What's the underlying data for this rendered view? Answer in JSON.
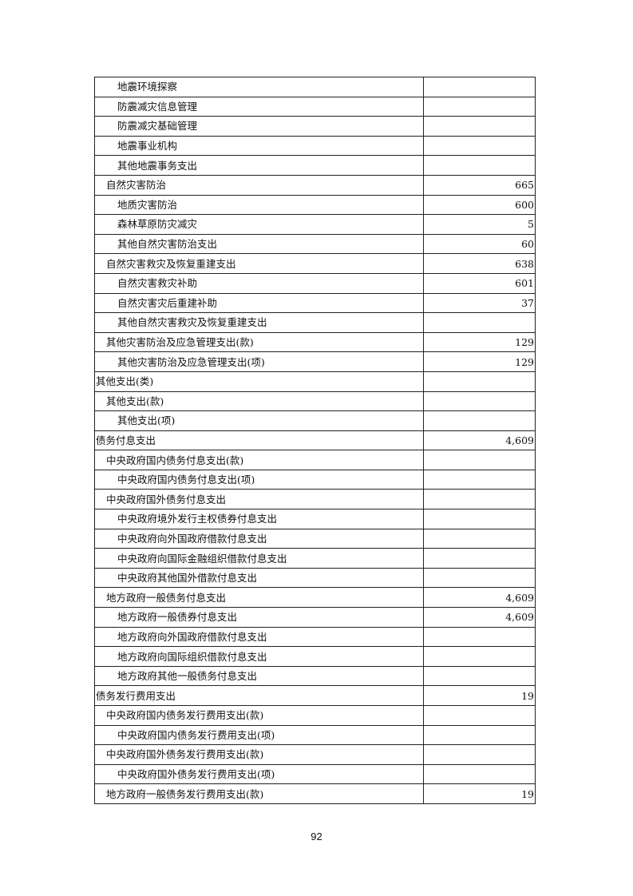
{
  "rows": [
    {
      "label": "地震环境探察",
      "level": 2,
      "value": ""
    },
    {
      "label": "防震减灾信息管理",
      "level": 2,
      "value": ""
    },
    {
      "label": "防震减灾基础管理",
      "level": 2,
      "value": ""
    },
    {
      "label": "地震事业机构",
      "level": 2,
      "value": ""
    },
    {
      "label": "其他地震事务支出",
      "level": 2,
      "value": ""
    },
    {
      "label": "自然灾害防治",
      "level": 1,
      "value": "665"
    },
    {
      "label": "地质灾害防治",
      "level": 2,
      "value": "600"
    },
    {
      "label": "森林草原防灾减灾",
      "level": 2,
      "value": "5"
    },
    {
      "label": "其他自然灾害防治支出",
      "level": 2,
      "value": "60"
    },
    {
      "label": "自然灾害救灾及恢复重建支出",
      "level": 1,
      "value": "638"
    },
    {
      "label": "自然灾害救灾补助",
      "level": 2,
      "value": "601"
    },
    {
      "label": "自然灾害灾后重建补助",
      "level": 2,
      "value": "37"
    },
    {
      "label": "其他自然灾害救灾及恢复重建支出",
      "level": 2,
      "value": ""
    },
    {
      "label": "其他灾害防治及应急管理支出(款)",
      "level": 1,
      "value": "129"
    },
    {
      "label": "其他灾害防治及应急管理支出(项)",
      "level": 2,
      "value": "129"
    },
    {
      "label": "其他支出(类)",
      "level": 0,
      "value": ""
    },
    {
      "label": "其他支出(款)",
      "level": 1,
      "value": ""
    },
    {
      "label": "其他支出(项)",
      "level": 2,
      "value": ""
    },
    {
      "label": "债务付息支出",
      "level": 0,
      "value": "4,609"
    },
    {
      "label": "中央政府国内债务付息支出(款)",
      "level": 1,
      "value": ""
    },
    {
      "label": "中央政府国内债务付息支出(项)",
      "level": 2,
      "value": ""
    },
    {
      "label": "中央政府国外债务付息支出",
      "level": 1,
      "value": ""
    },
    {
      "label": "中央政府境外发行主权债券付息支出",
      "level": 2,
      "value": ""
    },
    {
      "label": "中央政府向外国政府借款付息支出",
      "level": 2,
      "value": ""
    },
    {
      "label": "中央政府向国际金融组织借款付息支出",
      "level": 2,
      "value": ""
    },
    {
      "label": "中央政府其他国外借款付息支出",
      "level": 2,
      "value": ""
    },
    {
      "label": "地方政府一般债务付息支出",
      "level": 1,
      "value": "4,609"
    },
    {
      "label": "地方政府一般债券付息支出",
      "level": 2,
      "value": "4,609"
    },
    {
      "label": "地方政府向外国政府借款付息支出",
      "level": 2,
      "value": ""
    },
    {
      "label": "地方政府向国际组织借款付息支出",
      "level": 2,
      "value": ""
    },
    {
      "label": "地方政府其他一般债务付息支出",
      "level": 2,
      "value": ""
    },
    {
      "label": "债务发行费用支出",
      "level": 0,
      "value": "19"
    },
    {
      "label": "中央政府国内债务发行费用支出(款)",
      "level": 1,
      "value": ""
    },
    {
      "label": "中央政府国内债务发行费用支出(项)",
      "level": 2,
      "value": ""
    },
    {
      "label": "中央政府国外债务发行费用支出(款)",
      "level": 1,
      "value": ""
    },
    {
      "label": "中央政府国外债务发行费用支出(项)",
      "level": 2,
      "value": ""
    },
    {
      "label": "地方政府一般债务发行费用支出(款)",
      "level": 1,
      "value": "19"
    }
  ],
  "page_number": "92"
}
